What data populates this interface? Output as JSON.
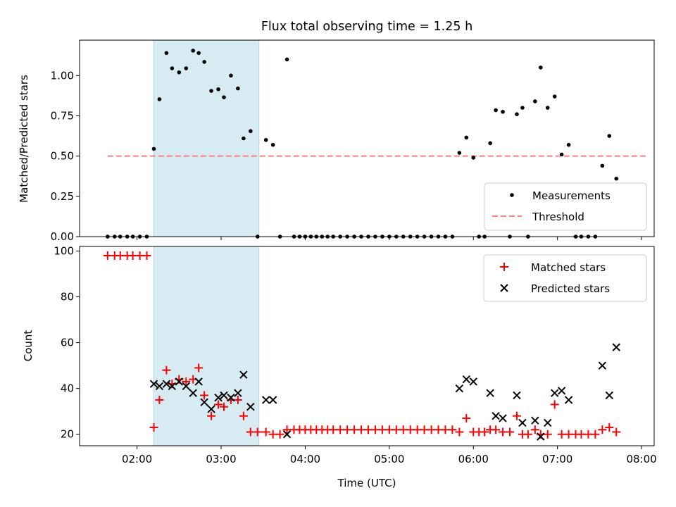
{
  "title": "Flux total observing time = 1.25 h",
  "colors": {
    "measurement": "#000000",
    "threshold": "#ff7f7f",
    "matched": "#ff0000",
    "predicted": "#000000",
    "span": "#add8e6"
  },
  "chart_data": [
    {
      "type": "scatter",
      "ylabel": "Matched/Predicted stars",
      "xlim": [
        "01:19",
        "08:09"
      ],
      "ylim": [
        0,
        1.22
      ],
      "yticks": [
        0.0,
        0.25,
        0.5,
        0.75,
        1.0
      ],
      "yticklabels": [
        "0.00",
        "0.25",
        "0.50",
        "0.75",
        "1.00"
      ],
      "highlight_span": [
        "02:12",
        "03:27"
      ],
      "threshold": {
        "value": 0.5,
        "from": "01:39",
        "to": "08:03"
      },
      "legend": {
        "position": "lower right",
        "items": [
          "Measurements",
          "Threshold"
        ]
      },
      "series": [
        {
          "name": "Measurements",
          "points": [
            [
              "01:39",
              0
            ],
            [
              "01:44",
              0
            ],
            [
              "01:48",
              0
            ],
            [
              "01:53",
              0
            ],
            [
              "01:57",
              0
            ],
            [
              "02:02",
              0
            ],
            [
              "02:07",
              0
            ],
            [
              "02:12",
              0.545
            ],
            [
              "02:16",
              0.853
            ],
            [
              "02:21",
              1.14
            ],
            [
              "02:25",
              1.045
            ],
            [
              "02:30",
              1.02
            ],
            [
              "02:35",
              1.045
            ],
            [
              "02:40",
              1.155
            ],
            [
              "02:44",
              1.14
            ],
            [
              "02:48",
              1.085
            ],
            [
              "02:53",
              0.905
            ],
            [
              "02:58",
              0.915
            ],
            [
              "03:02",
              0.865
            ],
            [
              "03:07",
              1.0
            ],
            [
              "03:12",
              0.92
            ],
            [
              "03:16",
              0.61
            ],
            [
              "03:21",
              0.655
            ],
            [
              "03:26",
              0
            ],
            [
              "03:32",
              0.6
            ],
            [
              "03:37",
              0.57
            ],
            [
              "03:42",
              0
            ],
            [
              "03:47",
              1.1
            ],
            [
              "03:52",
              0
            ],
            [
              "03:56",
              0
            ],
            [
              "04:00",
              0
            ],
            [
              "04:04",
              0
            ],
            [
              "04:08",
              0
            ],
            [
              "04:12",
              0
            ],
            [
              "04:16",
              0
            ],
            [
              "04:20",
              0
            ],
            [
              "04:25",
              0
            ],
            [
              "04:30",
              0
            ],
            [
              "04:35",
              0
            ],
            [
              "04:40",
              0
            ],
            [
              "04:45",
              0
            ],
            [
              "04:50",
              0
            ],
            [
              "04:55",
              0
            ],
            [
              "05:00",
              0
            ],
            [
              "05:05",
              0
            ],
            [
              "05:10",
              0
            ],
            [
              "05:15",
              0
            ],
            [
              "05:20",
              0
            ],
            [
              "05:25",
              0
            ],
            [
              "05:30",
              0
            ],
            [
              "05:35",
              0
            ],
            [
              "05:40",
              0
            ],
            [
              "05:45",
              0
            ],
            [
              "05:50",
              0.52
            ],
            [
              "05:55",
              0.615
            ],
            [
              "06:00",
              0.49
            ],
            [
              "06:04",
              0
            ],
            [
              "06:08",
              0
            ],
            [
              "06:12",
              0.58
            ],
            [
              "06:16",
              0.785
            ],
            [
              "06:21",
              0.775
            ],
            [
              "06:26",
              0
            ],
            [
              "06:31",
              0.76
            ],
            [
              "06:35",
              0.8
            ],
            [
              "06:39",
              0
            ],
            [
              "06:44",
              0.84
            ],
            [
              "06:48",
              1.05
            ],
            [
              "06:53",
              0.8
            ],
            [
              "06:58",
              0.87
            ],
            [
              "07:03",
              0.51
            ],
            [
              "07:08",
              0.57
            ],
            [
              "07:13",
              0
            ],
            [
              "07:17",
              0
            ],
            [
              "07:22",
              0
            ],
            [
              "07:27",
              0
            ],
            [
              "07:32",
              0.44
            ],
            [
              "07:37",
              0.625
            ],
            [
              "07:42",
              0.36
            ]
          ]
        }
      ]
    },
    {
      "type": "scatter",
      "xlabel": "Time (UTC)",
      "ylabel": "Count",
      "xlim": [
        "01:19",
        "08:09"
      ],
      "ylim": [
        15,
        102
      ],
      "yticks": [
        20,
        40,
        60,
        80,
        100
      ],
      "yticklabels": [
        "20",
        "40",
        "60",
        "80",
        "100"
      ],
      "xticks": [
        "02:00",
        "03:00",
        "04:00",
        "05:00",
        "06:00",
        "07:00",
        "08:00"
      ],
      "xticklabels": [
        "02:00",
        "03:00",
        "04:00",
        "05:00",
        "06:00",
        "07:00",
        "08:00"
      ],
      "highlight_span": [
        "02:12",
        "03:27"
      ],
      "legend": {
        "position": "upper right",
        "items": [
          "Matched stars",
          "Predicted stars"
        ]
      },
      "series": [
        {
          "name": "Matched stars",
          "points": [
            [
              "01:39",
              98
            ],
            [
              "01:44",
              98
            ],
            [
              "01:48",
              98
            ],
            [
              "01:53",
              98
            ],
            [
              "01:57",
              98
            ],
            [
              "02:02",
              98
            ],
            [
              "02:07",
              98
            ],
            [
              "02:12",
              23
            ],
            [
              "02:16",
              35
            ],
            [
              "02:21",
              48
            ],
            [
              "02:25",
              42
            ],
            [
              "02:30",
              44
            ],
            [
              "02:35",
              43
            ],
            [
              "02:40",
              44
            ],
            [
              "02:44",
              49
            ],
            [
              "02:48",
              37
            ],
            [
              "02:53",
              28
            ],
            [
              "02:58",
              33
            ],
            [
              "03:02",
              32
            ],
            [
              "03:07",
              35
            ],
            [
              "03:12",
              35
            ],
            [
              "03:16",
              28
            ],
            [
              "03:21",
              21
            ],
            [
              "03:26",
              21
            ],
            [
              "03:32",
              21
            ],
            [
              "03:37",
              20
            ],
            [
              "03:42",
              20
            ],
            [
              "03:47",
              22
            ],
            [
              "03:52",
              22
            ],
            [
              "03:56",
              22
            ],
            [
              "04:00",
              22
            ],
            [
              "04:04",
              22
            ],
            [
              "04:08",
              22
            ],
            [
              "04:12",
              22
            ],
            [
              "04:16",
              22
            ],
            [
              "04:20",
              22
            ],
            [
              "04:25",
              22
            ],
            [
              "04:30",
              22
            ],
            [
              "04:35",
              22
            ],
            [
              "04:40",
              22
            ],
            [
              "04:45",
              22
            ],
            [
              "04:50",
              22
            ],
            [
              "04:55",
              22
            ],
            [
              "05:00",
              22
            ],
            [
              "05:05",
              22
            ],
            [
              "05:10",
              22
            ],
            [
              "05:15",
              22
            ],
            [
              "05:20",
              22
            ],
            [
              "05:25",
              22
            ],
            [
              "05:30",
              22
            ],
            [
              "05:35",
              22
            ],
            [
              "05:40",
              22
            ],
            [
              "05:45",
              22
            ],
            [
              "05:50",
              21
            ],
            [
              "05:55",
              27
            ],
            [
              "06:00",
              21
            ],
            [
              "06:04",
              21
            ],
            [
              "06:08",
              21
            ],
            [
              "06:12",
              22
            ],
            [
              "06:16",
              22
            ],
            [
              "06:21",
              21
            ],
            [
              "06:26",
              21
            ],
            [
              "06:31",
              28
            ],
            [
              "06:35",
              20
            ],
            [
              "06:39",
              20
            ],
            [
              "06:44",
              22
            ],
            [
              "06:48",
              20
            ],
            [
              "06:53",
              20
            ],
            [
              "06:58",
              33
            ],
            [
              "07:03",
              20
            ],
            [
              "07:08",
              20
            ],
            [
              "07:13",
              20
            ],
            [
              "07:17",
              20
            ],
            [
              "07:22",
              20
            ],
            [
              "07:27",
              20
            ],
            [
              "07:32",
              22
            ],
            [
              "07:37",
              23
            ],
            [
              "07:42",
              21
            ]
          ]
        },
        {
          "name": "Predicted stars",
          "points": [
            [
              "02:12",
              42
            ],
            [
              "02:16",
              41
            ],
            [
              "02:21",
              42
            ],
            [
              "02:25",
              41
            ],
            [
              "02:30",
              43
            ],
            [
              "02:35",
              41
            ],
            [
              "02:40",
              38
            ],
            [
              "02:44",
              43
            ],
            [
              "02:48",
              34
            ],
            [
              "02:53",
              31
            ],
            [
              "02:58",
              36
            ],
            [
              "03:02",
              37
            ],
            [
              "03:07",
              36
            ],
            [
              "03:12",
              38
            ],
            [
              "03:16",
              46
            ],
            [
              "03:21",
              32
            ],
            [
              "03:32",
              35
            ],
            [
              "03:37",
              35
            ],
            [
              "03:47",
              20
            ],
            [
              "05:50",
              40
            ],
            [
              "05:55",
              44
            ],
            [
              "06:00",
              43
            ],
            [
              "06:12",
              38
            ],
            [
              "06:16",
              28
            ],
            [
              "06:21",
              27
            ],
            [
              "06:31",
              37
            ],
            [
              "06:35",
              25
            ],
            [
              "06:44",
              26
            ],
            [
              "06:48",
              19
            ],
            [
              "06:53",
              25
            ],
            [
              "06:58",
              38
            ],
            [
              "07:03",
              39
            ],
            [
              "07:08",
              35
            ],
            [
              "07:32",
              50
            ],
            [
              "07:37",
              37
            ],
            [
              "07:42",
              58
            ]
          ]
        }
      ]
    }
  ]
}
